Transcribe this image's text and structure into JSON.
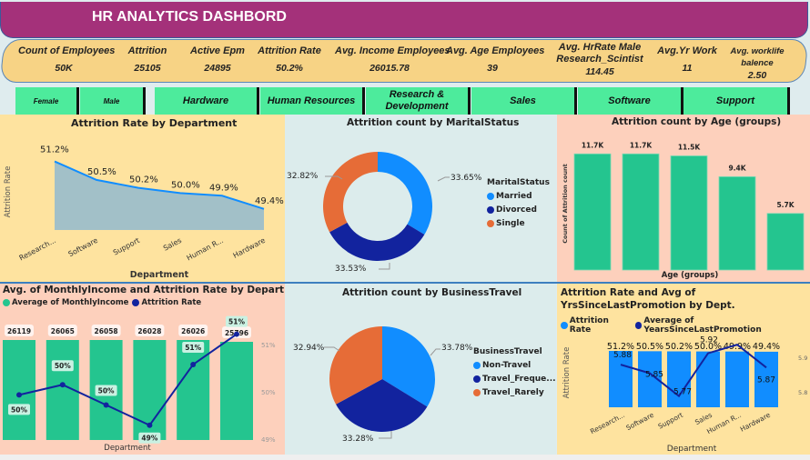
{
  "header": {
    "title": "HR ANALYTICS DASHBORD"
  },
  "kpis": [
    {
      "label": "Count of Employees",
      "value": "50K"
    },
    {
      "label": "Attrition",
      "value": "25105"
    },
    {
      "label": "Active Epm",
      "value": "24895"
    },
    {
      "label": "Attrition Rate",
      "value": "50.2%"
    },
    {
      "label": "Avg. Income Employees",
      "value": "26015.78"
    },
    {
      "label": "Avg. Age Employees",
      "value": "39"
    },
    {
      "label": "Avg. HrRate Male Research_Scintist",
      "value": "114.45"
    },
    {
      "label": "Avg.Yr Work",
      "value": "11"
    },
    {
      "label": "Avg. worklife balence",
      "value": "2.50"
    }
  ],
  "slicers": {
    "gender": [
      "Female",
      "Male"
    ],
    "department": [
      "Hardware",
      "Human Resources",
      "Research & Development",
      "Sales",
      "Software",
      "Support"
    ]
  },
  "colors": {
    "title_bg": "#a4317a",
    "kpi_bg": "#f7d385",
    "slicer_bg": "#4deb9c",
    "teal_bar": "#24c58f",
    "blue": "#118dff",
    "navy": "#12239e",
    "orange": "#e66c37",
    "area_fill": "#a2c0c8"
  },
  "chart_data": [
    {
      "id": "attrition_rate_by_department",
      "type": "area",
      "title": "Attrition Rate by Department",
      "xlabel": "Department",
      "ylabel": "Attrition Rate",
      "categories": [
        "Research...",
        "Software",
        "Support",
        "Sales",
        "Human R...",
        "Hardware"
      ],
      "values": [
        51.2,
        50.5,
        50.2,
        50.0,
        49.9,
        49.4
      ],
      "data_labels": [
        "51.2%",
        "50.5%",
        "50.2%",
        "50.0%",
        "49.9%",
        "49.4%"
      ],
      "ylim": [
        48.6,
        51.6
      ]
    },
    {
      "id": "attrition_by_marital_status",
      "type": "pie",
      "donut": true,
      "title": "Attrition count by MaritalStatus",
      "legend_title": "MaritalStatus",
      "legend": "right",
      "slices": [
        {
          "label": "Married",
          "value": 33.65,
          "color": "#118dff",
          "data_label": "33.65%"
        },
        {
          "label": "Divorced",
          "value": 33.53,
          "color": "#12239e",
          "data_label": "33.53%"
        },
        {
          "label": "Single",
          "value": 32.82,
          "color": "#e66c37",
          "data_label": "32.82%"
        }
      ]
    },
    {
      "id": "attrition_by_age_group",
      "type": "bar",
      "title": "Attrition count by Age (groups)",
      "xlabel": "Age (groups)",
      "ylabel": "Count of Attrition count",
      "categories": [
        "",
        "",
        "",
        "",
        ""
      ],
      "values": [
        11.7,
        11.7,
        11.5,
        9.4,
        5.7
      ],
      "unit": "K",
      "data_labels": [
        "11.7K",
        "11.7K",
        "11.5K",
        "9.4K",
        "5.7K"
      ],
      "ylim": [
        0,
        12
      ]
    },
    {
      "id": "income_and_attrition_by_department",
      "type": "bar",
      "combo": "bar+line",
      "title": "Avg. of MonthlyIncome and Attrition Rate by Department",
      "xlabel": "Department",
      "legend": "top-left",
      "series": [
        {
          "name": "Average of MonthlyIncome",
          "type": "bar",
          "color": "#24c58f",
          "values": [
            26119,
            26065,
            26058,
            26028,
            26026,
            25796
          ]
        },
        {
          "name": "Attrition Rate",
          "type": "line",
          "color": "#12239e",
          "values": [
            50.0,
            50.2,
            49.8,
            49.4,
            50.6,
            51.2
          ],
          "data_labels": [
            "50%",
            "50%",
            "50%",
            "49%",
            "51%",
            "51%"
          ]
        }
      ],
      "y2_ticks": [
        "51%",
        "50%",
        "49%"
      ],
      "y2lim": [
        49.0,
        51.3
      ]
    },
    {
      "id": "attrition_by_business_travel",
      "type": "pie",
      "title": "Attrition count by BusinessTravel",
      "legend_title": "BusinessTravel",
      "legend": "right",
      "slices": [
        {
          "label": "Non-Travel",
          "value": 33.78,
          "color": "#118dff",
          "data_label": "33.78%"
        },
        {
          "label": "Travel_Freque...",
          "value": 33.28,
          "color": "#12239e",
          "data_label": "33.28%"
        },
        {
          "label": "Travel_Rarely",
          "value": 32.94,
          "color": "#e66c37",
          "data_label": "32.94%"
        }
      ]
    },
    {
      "id": "attrition_and_promotion_by_department",
      "type": "bar",
      "combo": "bar+line",
      "title": "Attrition Rate and Avg of YrsSinceLastPromotion by Dept.",
      "xlabel": "Department",
      "ylabel": "Attrition Rate",
      "legend": "top-left",
      "categories": [
        "Research...",
        "Software",
        "Support",
        "Sales",
        "Human R...",
        "Hardware"
      ],
      "series": [
        {
          "name": "Attrition Rate",
          "type": "bar",
          "color": "#118dff",
          "values": [
            51.2,
            50.5,
            50.2,
            50.0,
            49.9,
            49.4
          ],
          "data_labels": [
            "51.2%",
            "50.5%",
            "50.2%",
            "50.0%",
            "49.9%",
            "49.4%"
          ]
        },
        {
          "name": "Average of YearsSinceLastPromotion",
          "type": "line",
          "color": "#12239e",
          "values": [
            5.88,
            5.85,
            5.77,
            5.92,
            5.95,
            5.87
          ],
          "data_labels": [
            "5.88",
            "5.85",
            "5.77",
            "5.92",
            "",
            "5.87"
          ]
        }
      ],
      "y2_ticks": [
        "5.9",
        "5.8"
      ],
      "y2lim": [
        5.75,
        5.96
      ]
    }
  ]
}
